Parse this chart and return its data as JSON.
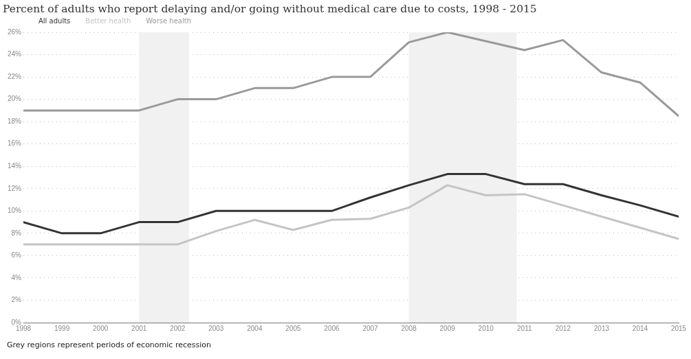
{
  "chart_data": {
    "type": "line",
    "title": "Percent of adults who report delaying and/or going without medical care due to costs, 1998 - 2015",
    "x": [
      1998,
      1999,
      2000,
      2001,
      2002,
      2003,
      2004,
      2005,
      2006,
      2007,
      2008,
      2009,
      2010,
      2011,
      2012,
      2013,
      2014,
      2015
    ],
    "series": [
      {
        "name": "All adults",
        "color": "#333333",
        "values": [
          9,
          8,
          8,
          9,
          9,
          10,
          10,
          10,
          10,
          11.2,
          12.3,
          13.3,
          13.3,
          12.4,
          12.4,
          11.4,
          10.5,
          9.5
        ]
      },
      {
        "name": "Better health",
        "color": "#c4c4c4",
        "values": [
          7,
          7,
          7,
          7,
          7,
          8.2,
          9.2,
          8.3,
          9.2,
          9.3,
          10.3,
          12.3,
          11.4,
          11.5,
          10.5,
          9.5,
          8.5,
          7.5
        ]
      },
      {
        "name": "Worse health",
        "color": "#999999",
        "values": [
          19,
          19,
          19,
          19,
          20,
          20,
          21,
          21,
          22,
          22,
          25.1,
          26,
          25.2,
          24.4,
          25.3,
          22.4,
          21.5,
          18.5
        ]
      }
    ],
    "xlim": [
      1998,
      2015
    ],
    "xticks": [
      1998,
      1999,
      2000,
      2001,
      2002,
      2003,
      2004,
      2005,
      2006,
      2007,
      2008,
      2009,
      2010,
      2011,
      2012,
      2013,
      2014,
      2015
    ],
    "ylim": [
      0,
      26
    ],
    "yticks": [
      {
        "value": 0,
        "label": "0%"
      },
      {
        "value": 2,
        "label": "2%"
      },
      {
        "value": 4,
        "label": "4%"
      },
      {
        "value": 6,
        "label": "6%"
      },
      {
        "value": 8,
        "label": "8%"
      },
      {
        "value": 10,
        "label": "10%"
      },
      {
        "value": 12,
        "label": "12%"
      },
      {
        "value": 14,
        "label": "14%"
      },
      {
        "value": 16,
        "label": "16%"
      },
      {
        "value": 18,
        "label": "18%"
      },
      {
        "value": 20,
        "label": "20%"
      },
      {
        "value": 22,
        "label": "22%"
      },
      {
        "value": 24,
        "label": "24%"
      },
      {
        "value": 26,
        "label": "26%"
      }
    ],
    "bands": [
      {
        "axis": "x",
        "from": 2001,
        "to": 2002.3,
        "color": "#f1f1f1"
      },
      {
        "axis": "x",
        "from": 2008,
        "to": 2010.8,
        "color": "#f1f1f1"
      }
    ],
    "grid": "y",
    "legend": "top left",
    "marker": "none",
    "line_style": "solid",
    "annotations": [
      "Grey regions represent periods of economic recession"
    ]
  }
}
